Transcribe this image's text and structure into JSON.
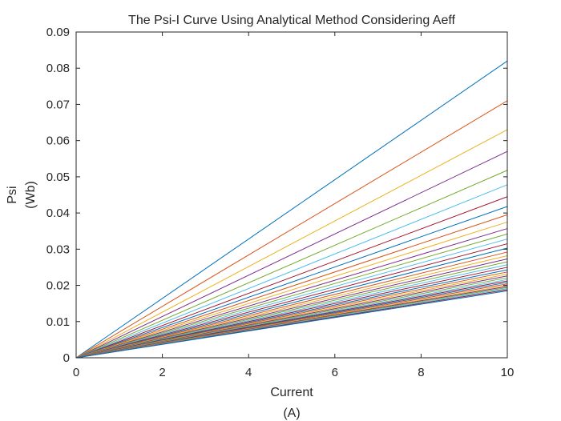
{
  "chart_data": {
    "type": "line",
    "title": "The Psi-I Curve Using Analytical Method Considering Aeff",
    "xlabel": [
      "Current",
      "(A)"
    ],
    "ylabel": [
      "Psi",
      "(Wb)"
    ],
    "xlim": [
      0,
      10
    ],
    "ylim": [
      0,
      0.09
    ],
    "xticks": [
      0,
      2,
      4,
      6,
      8,
      10
    ],
    "yticks": [
      0,
      0.01,
      0.02,
      0.03,
      0.04,
      0.05,
      0.06,
      0.07,
      0.08,
      0.09
    ],
    "xtick_labels": [
      "0",
      "2",
      "4",
      "6",
      "8",
      "10"
    ],
    "ytick_labels": [
      "0",
      "0.01",
      "0.02",
      "0.03",
      "0.04",
      "0.05",
      "0.06",
      "0.07",
      "0.08",
      "0.09"
    ],
    "grid": false,
    "legend": "none",
    "x": [
      0,
      10
    ],
    "series": [
      {
        "values": [
          0,
          0.082
        ],
        "color": "#0072BD"
      },
      {
        "values": [
          0,
          0.071
        ],
        "color": "#D95319"
      },
      {
        "values": [
          0,
          0.063
        ],
        "color": "#EDB120"
      },
      {
        "values": [
          0,
          0.057
        ],
        "color": "#7E2F8E"
      },
      {
        "values": [
          0,
          0.0518
        ],
        "color": "#77AC30"
      },
      {
        "values": [
          0,
          0.0478
        ],
        "color": "#4DBEEE"
      },
      {
        "values": [
          0,
          0.0445
        ],
        "color": "#A2142F"
      },
      {
        "values": [
          0,
          0.0418
        ],
        "color": "#0072BD"
      },
      {
        "values": [
          0,
          0.0395
        ],
        "color": "#D95319"
      },
      {
        "values": [
          0,
          0.0375
        ],
        "color": "#EDB120"
      },
      {
        "values": [
          0,
          0.0357
        ],
        "color": "#7E2F8E"
      },
      {
        "values": [
          0,
          0.0342
        ],
        "color": "#77AC30"
      },
      {
        "values": [
          0,
          0.0328
        ],
        "color": "#4DBEEE"
      },
      {
        "values": [
          0,
          0.0315
        ],
        "color": "#A2142F"
      },
      {
        "values": [
          0,
          0.0303
        ],
        "color": "#0072BD"
      },
      {
        "values": [
          0,
          0.0292
        ],
        "color": "#D95319"
      },
      {
        "values": [
          0,
          0.0282
        ],
        "color": "#EDB120"
      },
      {
        "values": [
          0,
          0.0273
        ],
        "color": "#7E2F8E"
      },
      {
        "values": [
          0,
          0.0265
        ],
        "color": "#77AC30"
      },
      {
        "values": [
          0,
          0.0257
        ],
        "color": "#4DBEEE"
      },
      {
        "values": [
          0,
          0.025
        ],
        "color": "#A2142F"
      },
      {
        "values": [
          0,
          0.0243
        ],
        "color": "#0072BD"
      },
      {
        "values": [
          0,
          0.0237
        ],
        "color": "#D95319"
      },
      {
        "values": [
          0,
          0.0231
        ],
        "color": "#EDB120"
      },
      {
        "values": [
          0,
          0.0226
        ],
        "color": "#7E2F8E"
      },
      {
        "values": [
          0,
          0.0221
        ],
        "color": "#77AC30"
      },
      {
        "values": [
          0,
          0.0216
        ],
        "color": "#4DBEEE"
      },
      {
        "values": [
          0,
          0.0212
        ],
        "color": "#A2142F"
      },
      {
        "values": [
          0,
          0.0208
        ],
        "color": "#0072BD"
      },
      {
        "values": [
          0,
          0.0204
        ],
        "color": "#D95319"
      },
      {
        "values": [
          0,
          0.02
        ],
        "color": "#EDB120"
      },
      {
        "values": [
          0,
          0.0197
        ],
        "color": "#7E2F8E"
      },
      {
        "values": [
          0,
          0.0194
        ],
        "color": "#77AC30"
      },
      {
        "values": [
          0,
          0.0191
        ],
        "color": "#4DBEEE"
      },
      {
        "values": [
          0,
          0.0188
        ],
        "color": "#A2142F"
      },
      {
        "values": [
          0,
          0.0185
        ],
        "color": "#0072BD"
      }
    ]
  }
}
